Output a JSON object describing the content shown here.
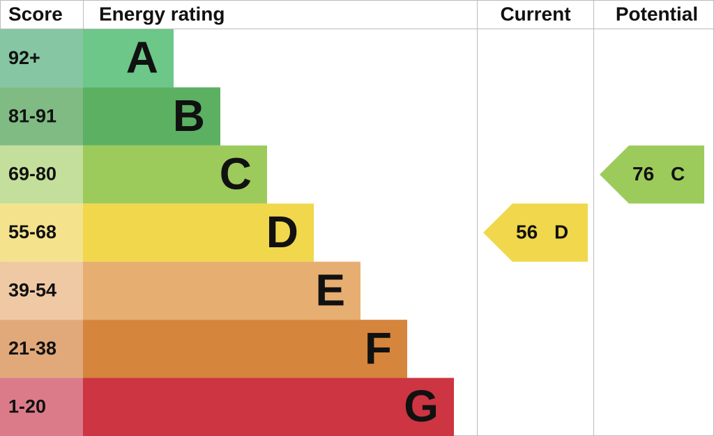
{
  "header": {
    "score": "Score",
    "rating": "Energy rating",
    "current": "Current",
    "potential": "Potential"
  },
  "bands": [
    {
      "score": "92+",
      "letter": "A",
      "color": "#6cc788",
      "score_color": "#86c6a2"
    },
    {
      "score": "81-91",
      "letter": "B",
      "color": "#5bb062",
      "score_color": "#7fbb83"
    },
    {
      "score": "69-80",
      "letter": "C",
      "color": "#9ccb5b",
      "score_color": "#c3df9b"
    },
    {
      "score": "55-68",
      "letter": "D",
      "color": "#f0d74c",
      "score_color": "#f4e38c"
    },
    {
      "score": "39-54",
      "letter": "E",
      "color": "#e7ae72",
      "score_color": "#efc9a4"
    },
    {
      "score": "21-38",
      "letter": "F",
      "color": "#d6853c",
      "score_color": "#e1a97a"
    },
    {
      "score": "1-20",
      "letter": "G",
      "color": "#cc3541",
      "score_color": "#db7b8a"
    }
  ],
  "current": {
    "value": "56",
    "letter": "D"
  },
  "potential": {
    "value": "76",
    "letter": "C"
  }
}
